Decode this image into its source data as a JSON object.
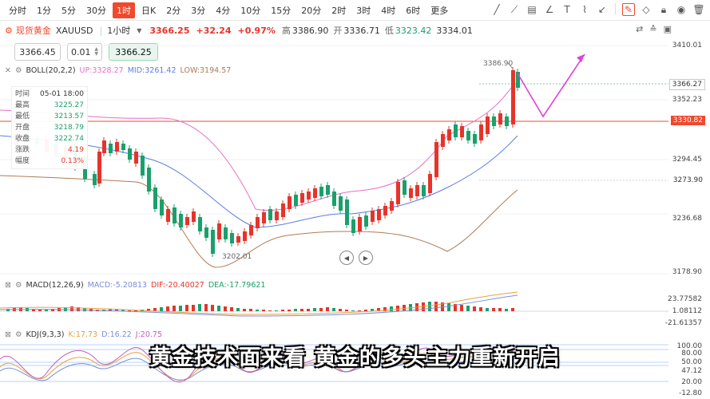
{
  "toolbar": {
    "timeframes": [
      "分时",
      "1分",
      "5分",
      "30分",
      "1时",
      "日K",
      "2分",
      "3分",
      "4分",
      "10分",
      "15分",
      "20分",
      "2时",
      "3时",
      "4时",
      "6时",
      "更多"
    ],
    "active_timeframe": "1时"
  },
  "symbol": {
    "name": "现货黄金",
    "code": "XAUUSD",
    "interval": "1小时",
    "price": "3366.25",
    "change": "+32.24",
    "change_pct": "+0.97%",
    "high_label": "高",
    "high": "3386.90",
    "open_label": "开",
    "open": "3336.71",
    "low_label": "低",
    "low": "3323.42",
    "prev": "3334.01"
  },
  "order": {
    "ask": "3366.45",
    "qty": "0.01",
    "bid": "3366.25"
  },
  "boll": {
    "label": "BOLL(20,2,2)",
    "up": "UP:3328.27",
    "mid": "MID:3261.42",
    "low": "LOW:3194.57"
  },
  "infobox": {
    "rows": [
      {
        "k": "时间",
        "v": "05-01 18:00"
      },
      {
        "k": "最高",
        "v": "3225.27"
      },
      {
        "k": "最低",
        "v": "3213.57"
      },
      {
        "k": "开盘",
        "v": "3218.79"
      },
      {
        "k": "收盘",
        "v": "3222.74"
      },
      {
        "k": "涨跌",
        "v": "4.19"
      },
      {
        "k": "幅度",
        "v": "0.13%"
      }
    ]
  },
  "price_axis": {
    "ticks": [
      "3410.01",
      "3352.23",
      "3294.45",
      "3236.68",
      "3178.90"
    ],
    "current_tag": "3366.27",
    "line_tag": "3330.82",
    "cross_tag": "3273.90"
  },
  "chart_labels": {
    "peak": "3386.90",
    "trough": "3202.01"
  },
  "macd": {
    "label": "MACD(12,26,9)",
    "macd": "MACD:-5.20813",
    "dif": "DIF:-20.40027",
    "dea": "DEA:-17.79621",
    "ticks": [
      "23.77582",
      "1.08112",
      "-21.61357"
    ]
  },
  "kdj": {
    "label": "KDJ(9,3,3)",
    "k": "K:17.73",
    "d": "D:16.22",
    "j": "J:20.75",
    "ticks": [
      "100.00",
      "80.00",
      "50.00",
      "47.12",
      "20.00",
      "-12.80"
    ]
  },
  "caption": "黄金技术面来看 黄金的多头主力重新开启",
  "colors": {
    "up": "#e6342a",
    "down": "#1aa06b",
    "boll_up": "#e76fc7",
    "boll_mid": "#5b7fe4",
    "boll_low": "#b07a55",
    "accent": "#f0492d",
    "arrow": "#e040e0"
  }
}
